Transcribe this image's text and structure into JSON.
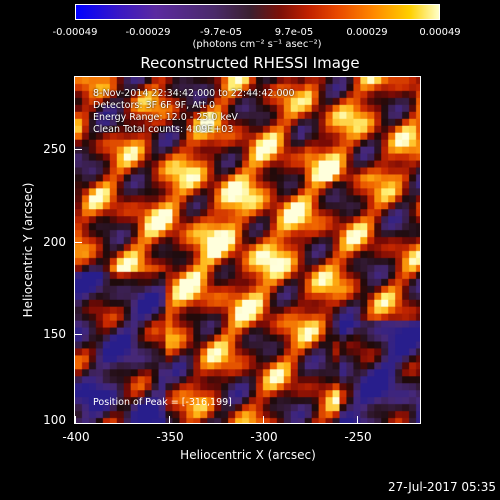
{
  "colorbar": {
    "labels": [
      "-0.00049",
      "-0.00029",
      "-9.7e-05",
      "9.7e-05",
      "0.00029",
      "0.00049"
    ],
    "unit": "(photons cm⁻² s⁻¹ asec⁻²)"
  },
  "title": "Reconstructed RHESSI Image",
  "info": {
    "time_range": "8-Nov-2014 22:34:42.000 to 22:44:42.000",
    "detectors": "Detectors: 3F 6F 9F, Att 0",
    "energy": "Energy Range: 12.0 - 25.0 keV",
    "clean": "Clean    Total counts: 4.09E+03",
    "peak": "Position of Peak = [-316,199]"
  },
  "axes": {
    "xlabel": "Heliocentric X (arcsec)",
    "ylabel": "Heliocentric Y (arcsec)",
    "xticks": [
      "-400",
      "-350",
      "-300",
      "-250"
    ],
    "yticks": [
      "250",
      "200",
      "150",
      "100"
    ]
  },
  "timestamp": "27-Jul-2017 05:35"
}
